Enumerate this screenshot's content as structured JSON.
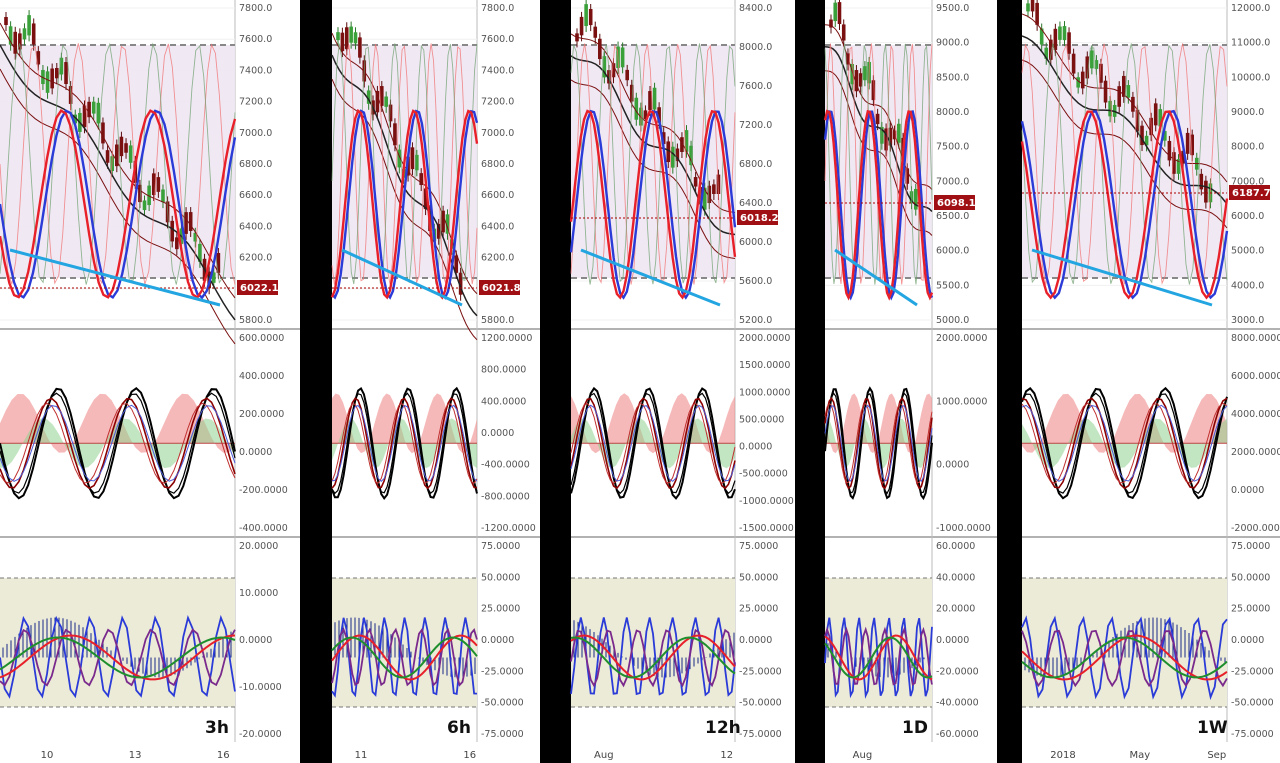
{
  "panels": [
    {
      "timeframe": "3h",
      "price_ticks": [
        "5800.0",
        "6000.0",
        "6200.0",
        "6400.0",
        "6600.0",
        "6800.0",
        "7000.0",
        "7200.0",
        "7400.0",
        "7600.0",
        "7800.0"
      ],
      "price_tag": "6022.1",
      "osc_ticks": [
        "-400.0000",
        "-200.0000",
        "0.0000",
        "200.0000",
        "400.0000",
        "600.0000"
      ],
      "rsi_ticks": [
        "-20.0000",
        "-10.0000",
        "0.0000",
        "10.0000",
        "20.0000"
      ],
      "date_ticks": [
        "10",
        "13",
        "16"
      ]
    },
    {
      "timeframe": "6h",
      "price_ticks": [
        "5800.0",
        "6000.0",
        "6200.0",
        "6400.0",
        "6600.0",
        "6800.0",
        "7000.0",
        "7200.0",
        "7400.0",
        "7600.0",
        "7800.0"
      ],
      "price_tag": "6021.8",
      "osc_ticks": [
        "-1200.0000",
        "-800.0000",
        "-400.0000",
        "0.0000",
        "400.0000",
        "800.0000",
        "1200.0000"
      ],
      "rsi_ticks": [
        "-75.0000",
        "-50.0000",
        "-25.0000",
        "0.0000",
        "25.0000",
        "50.0000",
        "75.0000"
      ],
      "date_ticks": [
        "11",
        "16"
      ]
    },
    {
      "timeframe": "12h",
      "price_ticks": [
        "5200.0",
        "5600.0",
        "6000.0",
        "6400.0",
        "6800.0",
        "7200.0",
        "7600.0",
        "8000.0",
        "8400.0"
      ],
      "price_tag": "6018.2",
      "osc_ticks": [
        "-1500.0000",
        "-1000.0000",
        "-500.0000",
        "0.0000",
        "500.0000",
        "1000.0000",
        "1500.0000",
        "2000.0000"
      ],
      "rsi_ticks": [
        "-75.0000",
        "-50.0000",
        "-25.0000",
        "0.0000",
        "25.0000",
        "50.0000",
        "75.0000"
      ],
      "date_ticks": [
        "Aug",
        "12"
      ]
    },
    {
      "timeframe": "1D",
      "price_ticks": [
        "5000.0",
        "5500.0",
        "6000.0",
        "6500.0",
        "7000.0",
        "7500.0",
        "8000.0",
        "8500.0",
        "9000.0",
        "9500.0"
      ],
      "price_tag": "6098.1",
      "osc_ticks": [
        "-1000.0000",
        "0.0000",
        "1000.0000",
        "2000.0000"
      ],
      "rsi_ticks": [
        "-60.0000",
        "-40.0000",
        "-20.0000",
        "0.0000",
        "20.0000",
        "40.0000",
        "60.0000"
      ],
      "date_ticks": [
        "Aug"
      ]
    },
    {
      "timeframe": "1W",
      "price_ticks": [
        "3000.0",
        "4000.0",
        "5000.0",
        "6000.0",
        "7000.0",
        "8000.0",
        "9000.0",
        "10000.0",
        "11000.0",
        "12000.0"
      ],
      "price_tag": "6187.7",
      "osc_ticks": [
        "-2000.0000",
        "0.0000",
        "2000.0000",
        "4000.0000",
        "6000.0000",
        "8000.0000"
      ],
      "rsi_ticks": [
        "-75.0000",
        "-50.0000",
        "-25.0000",
        "0.0000",
        "25.0000",
        "50.0000",
        "75.0000"
      ],
      "date_ticks": [
        "2018",
        "May",
        "Sep"
      ]
    }
  ],
  "chart_data": [
    {
      "type": "line",
      "timeframe": "3h",
      "price_last": 6022.1,
      "price_ylim": [
        5750,
        7850
      ],
      "osc_ylim": [
        -480,
        650
      ],
      "rsi_ylim": [
        -25,
        25
      ]
    },
    {
      "type": "line",
      "timeframe": "6h",
      "price_last": 6021.8,
      "price_ylim": [
        5650,
        7850
      ],
      "osc_ylim": [
        -1250,
        1300
      ],
      "rsi_ylim": [
        -80,
        80
      ]
    },
    {
      "type": "line",
      "timeframe": "12h",
      "price_last": 6018.2,
      "price_ylim": [
        5050,
        8500
      ],
      "osc_ylim": [
        -1700,
        2100
      ],
      "rsi_ylim": [
        -80,
        80
      ]
    },
    {
      "type": "line",
      "timeframe": "1D",
      "price_last": 6098.1,
      "price_ylim": [
        4900,
        9800
      ],
      "osc_ylim": [
        -1600,
        2700
      ],
      "rsi_ylim": [
        -70,
        70
      ]
    },
    {
      "type": "line",
      "timeframe": "1W",
      "price_last": 6187.7,
      "price_ylim": [
        2200,
        12300
      ],
      "osc_ylim": [
        -2900,
        8500
      ],
      "rsi_ylim": [
        -85,
        85
      ]
    }
  ],
  "colors": {
    "blue": "#2a3bd8",
    "red": "#e8202a",
    "darkred": "#8b0000",
    "cyan": "#22a5e0",
    "green": "#1f8f2e",
    "purple": "#7a2a8c",
    "greenfill": "#8fd18f",
    "redfill": "#f08a8a",
    "band": "#eee7f3",
    "rsiband": "#ecebd7",
    "tag": "#a00f14"
  }
}
